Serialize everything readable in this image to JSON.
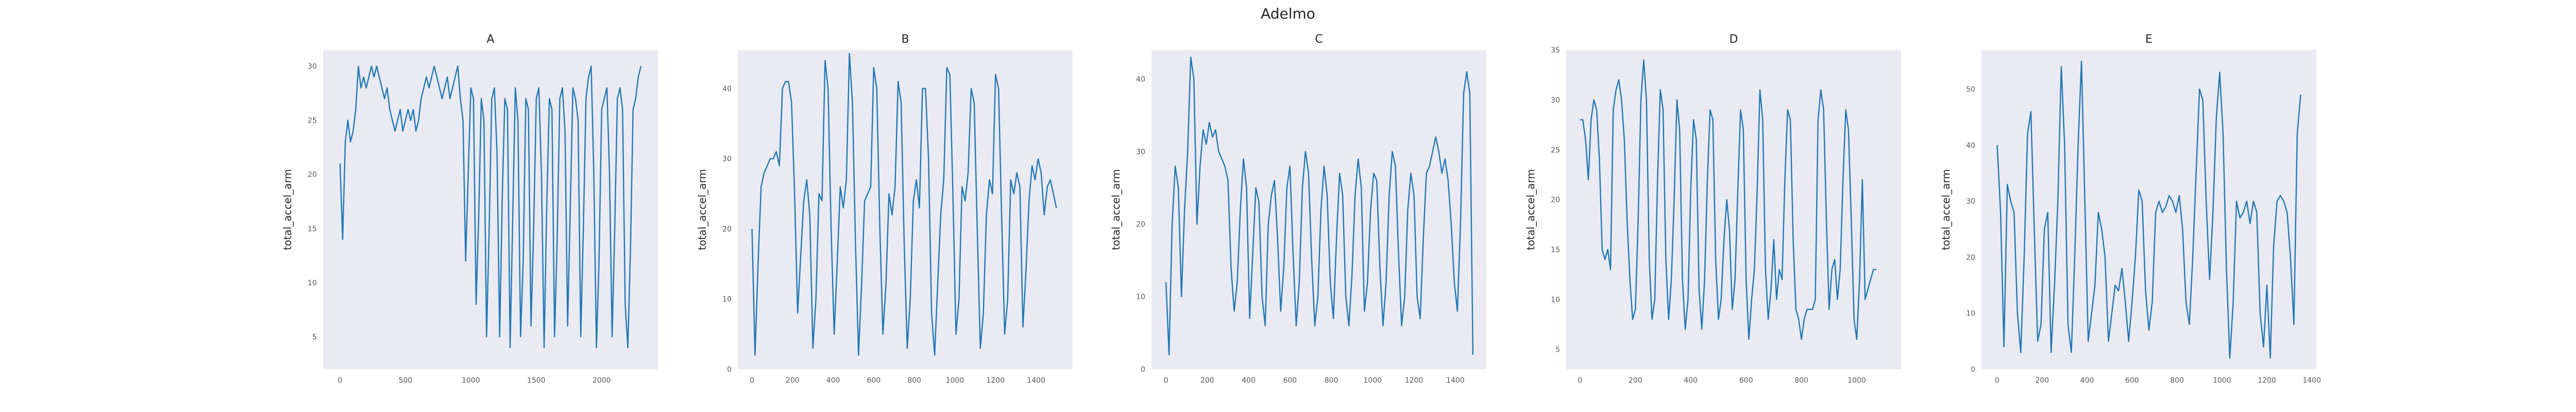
{
  "figure_title": "Adelmo",
  "colors": {
    "line": "#1f77b4",
    "plot_bg": "#eaeaf2"
  },
  "chart_data": [
    {
      "type": "line",
      "title": "A",
      "xlabel": "",
      "ylabel": "total_accel_arm",
      "xlim": [
        -130,
        2430
      ],
      "ylim": [
        2,
        31.5
      ],
      "xticks": [
        0,
        500,
        1000,
        1500,
        2000
      ],
      "yticks": [
        5,
        10,
        15,
        20,
        25,
        30
      ],
      "grid": false,
      "x": [
        0,
        20,
        40,
        60,
        80,
        100,
        120,
        140,
        160,
        180,
        200,
        220,
        240,
        260,
        280,
        300,
        320,
        340,
        360,
        380,
        400,
        420,
        440,
        460,
        480,
        500,
        520,
        540,
        560,
        580,
        600,
        620,
        640,
        660,
        680,
        700,
        720,
        740,
        760,
        780,
        800,
        820,
        840,
        860,
        880,
        900,
        920,
        940,
        960,
        980,
        1000,
        1020,
        1040,
        1060,
        1080,
        1100,
        1120,
        1140,
        1160,
        1180,
        1200,
        1220,
        1240,
        1260,
        1280,
        1300,
        1320,
        1340,
        1360,
        1380,
        1400,
        1420,
        1440,
        1460,
        1480,
        1500,
        1520,
        1540,
        1560,
        1580,
        1600,
        1620,
        1640,
        1660,
        1680,
        1700,
        1720,
        1740,
        1760,
        1780,
        1800,
        1820,
        1840,
        1860,
        1880,
        1900,
        1920,
        1940,
        1960,
        1980,
        2000,
        2020,
        2040,
        2060,
        2080,
        2100,
        2120,
        2140,
        2160,
        2180,
        2200,
        2220,
        2240,
        2260,
        2280,
        2300
      ],
      "values": [
        21,
        14,
        23,
        25,
        23,
        24,
        26,
        30,
        28,
        29,
        28,
        29,
        30,
        29,
        30,
        29,
        28,
        27,
        28,
        26,
        25,
        24,
        25,
        26,
        24,
        25,
        26,
        25,
        26,
        24,
        25,
        27,
        28,
        29,
        28,
        29,
        30,
        29,
        28,
        27,
        28,
        29,
        27,
        28,
        29,
        30,
        27,
        25,
        12,
        20,
        28,
        27,
        8,
        16,
        27,
        25,
        5,
        15,
        27,
        28,
        22,
        5,
        18,
        27,
        26,
        4,
        16,
        28,
        25,
        5,
        12,
        27,
        26,
        6,
        15,
        27,
        28,
        20,
        4,
        17,
        27,
        26,
        5,
        14,
        27,
        28,
        24,
        6,
        17,
        28,
        27,
        25,
        5,
        15,
        27,
        29,
        30,
        20,
        4,
        12,
        26,
        27,
        28,
        20,
        5,
        15,
        27,
        28,
        26,
        8,
        4,
        13,
        26,
        27,
        29,
        30
      ]
    },
    {
      "type": "line",
      "title": "B",
      "xlabel": "",
      "ylabel": "total_accel_arm",
      "xlim": [
        -70,
        1580
      ],
      "ylim": [
        0,
        45.5
      ],
      "xticks": [
        0,
        200,
        400,
        600,
        800,
        1000,
        1200,
        1400
      ],
      "yticks": [
        0,
        10,
        20,
        30,
        40
      ],
      "grid": false,
      "x": [
        0,
        15,
        30,
        45,
        60,
        75,
        90,
        105,
        120,
        135,
        150,
        165,
        180,
        195,
        210,
        225,
        240,
        255,
        270,
        285,
        300,
        315,
        330,
        345,
        360,
        375,
        390,
        405,
        420,
        435,
        450,
        465,
        480,
        495,
        510,
        525,
        540,
        555,
        570,
        585,
        600,
        615,
        630,
        645,
        660,
        675,
        690,
        705,
        720,
        735,
        750,
        765,
        780,
        795,
        810,
        825,
        840,
        855,
        870,
        885,
        900,
        915,
        930,
        945,
        960,
        975,
        990,
        1005,
        1020,
        1035,
        1050,
        1065,
        1080,
        1095,
        1110,
        1125,
        1140,
        1155,
        1170,
        1185,
        1200,
        1215,
        1230,
        1245,
        1260,
        1275,
        1290,
        1305,
        1320,
        1335,
        1350,
        1365,
        1380,
        1395,
        1410,
        1425,
        1440,
        1455,
        1470,
        1485,
        1500
      ],
      "values": [
        20,
        2,
        15,
        26,
        28,
        29,
        30,
        30,
        31,
        29,
        40,
        41,
        41,
        38,
        25,
        8,
        16,
        24,
        27,
        22,
        3,
        10,
        25,
        24,
        44,
        40,
        20,
        5,
        15,
        26,
        23,
        27,
        45,
        38,
        18,
        2,
        12,
        24,
        25,
        26,
        43,
        40,
        20,
        5,
        12,
        25,
        22,
        26,
        41,
        38,
        18,
        3,
        10,
        24,
        27,
        23,
        40,
        40,
        30,
        8,
        2,
        12,
        22,
        27,
        43,
        42,
        25,
        5,
        10,
        26,
        24,
        28,
        40,
        38,
        20,
        3,
        8,
        22,
        27,
        25,
        42,
        40,
        22,
        5,
        10,
        27,
        25,
        28,
        26,
        6,
        14,
        24,
        29,
        27,
        30,
        28,
        22,
        26,
        27,
        25,
        23
      ]
    },
    {
      "type": "line",
      "title": "C",
      "xlabel": "",
      "ylabel": "total_accel_arm",
      "xlim": [
        -70,
        1550
      ],
      "ylim": [
        0,
        44
      ],
      "xticks": [
        0,
        200,
        400,
        600,
        800,
        1000,
        1200,
        1400
      ],
      "yticks": [
        0,
        10,
        20,
        30,
        40
      ],
      "grid": false,
      "x": [
        0,
        15,
        30,
        45,
        60,
        75,
        90,
        105,
        120,
        135,
        150,
        165,
        180,
        195,
        210,
        225,
        240,
        255,
        270,
        285,
        300,
        315,
        330,
        345,
        360,
        375,
        390,
        405,
        420,
        435,
        450,
        465,
        480,
        495,
        510,
        525,
        540,
        555,
        570,
        585,
        600,
        615,
        630,
        645,
        660,
        675,
        690,
        705,
        720,
        735,
        750,
        765,
        780,
        795,
        810,
        825,
        840,
        855,
        870,
        885,
        900,
        915,
        930,
        945,
        960,
        975,
        990,
        1005,
        1020,
        1035,
        1050,
        1065,
        1080,
        1095,
        1110,
        1125,
        1140,
        1155,
        1170,
        1185,
        1200,
        1215,
        1230,
        1245,
        1260,
        1275,
        1290,
        1305,
        1320,
        1335,
        1350,
        1365,
        1380,
        1395,
        1410,
        1425,
        1440,
        1455,
        1470,
        1485
      ],
      "values": [
        12,
        2,
        20,
        28,
        25,
        10,
        22,
        30,
        43,
        40,
        20,
        28,
        33,
        31,
        34,
        32,
        33,
        30,
        29,
        28,
        26,
        14,
        8,
        12,
        22,
        29,
        25,
        7,
        16,
        25,
        23,
        10,
        6,
        20,
        24,
        26,
        18,
        8,
        14,
        25,
        28,
        16,
        6,
        12,
        25,
        30,
        27,
        15,
        6,
        10,
        22,
        28,
        24,
        12,
        7,
        18,
        27,
        24,
        10,
        6,
        13,
        24,
        29,
        25,
        8,
        12,
        22,
        27,
        26,
        14,
        6,
        12,
        24,
        30,
        28,
        16,
        6,
        10,
        22,
        27,
        24,
        10,
        7,
        18,
        27,
        28,
        30,
        32,
        30,
        27,
        29,
        26,
        20,
        12,
        8,
        20,
        38,
        41,
        38,
        2
      ]
    },
    {
      "type": "line",
      "title": "D",
      "xlabel": "",
      "ylabel": "total_accel_arm",
      "xlim": [
        -50,
        1160
      ],
      "ylim": [
        3,
        35
      ],
      "xticks": [
        0,
        200,
        400,
        600,
        800,
        1000
      ],
      "yticks": [
        5,
        10,
        15,
        20,
        25,
        30,
        35
      ],
      "grid": false,
      "x": [
        0,
        10,
        20,
        30,
        40,
        50,
        60,
        70,
        80,
        90,
        100,
        110,
        120,
        130,
        140,
        150,
        160,
        170,
        180,
        190,
        200,
        210,
        220,
        230,
        240,
        250,
        260,
        270,
        280,
        290,
        300,
        310,
        320,
        330,
        340,
        350,
        360,
        370,
        380,
        390,
        400,
        410,
        420,
        430,
        440,
        450,
        460,
        470,
        480,
        490,
        500,
        510,
        520,
        530,
        540,
        550,
        560,
        570,
        580,
        590,
        600,
        610,
        620,
        630,
        640,
        650,
        660,
        670,
        680,
        690,
        700,
        710,
        720,
        730,
        740,
        750,
        760,
        770,
        780,
        790,
        800,
        810,
        820,
        830,
        840,
        850,
        860,
        870,
        880,
        890,
        900,
        910,
        920,
        930,
        940,
        950,
        960,
        970,
        980,
        990,
        1000,
        1010,
        1020,
        1030,
        1040,
        1050,
        1060,
        1070
      ],
      "values": [
        28,
        28,
        26,
        22,
        28,
        30,
        29,
        24,
        15,
        14,
        15,
        13,
        29,
        31,
        32,
        30,
        26,
        18,
        12,
        8,
        9,
        18,
        30,
        34,
        30,
        14,
        8,
        10,
        22,
        31,
        29,
        14,
        8,
        12,
        20,
        30,
        27,
        12,
        7,
        10,
        21,
        28,
        26,
        11,
        7,
        12,
        22,
        29,
        28,
        14,
        8,
        10,
        16,
        20,
        17,
        9,
        12,
        21,
        29,
        27,
        12,
        6,
        10,
        13,
        21,
        31,
        28,
        13,
        8,
        11,
        16,
        10,
        13,
        12,
        22,
        29,
        28,
        16,
        9,
        8,
        6,
        8,
        9,
        9,
        9,
        10,
        28,
        31,
        29,
        18,
        9,
        13,
        14,
        10,
        13,
        22,
        29,
        27,
        18,
        8,
        6,
        12,
        22,
        10,
        11,
        12,
        13,
        13
      ]
    },
    {
      "type": "line",
      "title": "E",
      "xlabel": "",
      "ylabel": "total_accel_arm",
      "xlim": [
        -70,
        1420
      ],
      "ylim": [
        0,
        57
      ],
      "xticks": [
        0,
        200,
        400,
        600,
        800,
        1000,
        1200,
        1400
      ],
      "yticks": [
        0,
        10,
        20,
        30,
        40,
        50
      ],
      "grid": false,
      "x": [
        0,
        15,
        30,
        45,
        60,
        75,
        90,
        105,
        120,
        135,
        150,
        165,
        180,
        195,
        210,
        225,
        240,
        255,
        270,
        285,
        300,
        315,
        330,
        345,
        360,
        375,
        390,
        405,
        420,
        435,
        450,
        465,
        480,
        495,
        510,
        525,
        540,
        555,
        570,
        585,
        600,
        615,
        630,
        645,
        660,
        675,
        690,
        705,
        720,
        735,
        750,
        765,
        780,
        795,
        810,
        825,
        840,
        855,
        870,
        885,
        900,
        915,
        930,
        945,
        960,
        975,
        990,
        1005,
        1020,
        1035,
        1050,
        1065,
        1080,
        1095,
        1110,
        1125,
        1140,
        1155,
        1170,
        1185,
        1200,
        1215,
        1230,
        1245,
        1260,
        1275,
        1290,
        1305,
        1320,
        1335,
        1350
      ],
      "values": [
        40,
        28,
        4,
        33,
        30,
        28,
        10,
        3,
        20,
        42,
        46,
        25,
        5,
        8,
        25,
        28,
        3,
        15,
        30,
        54,
        40,
        8,
        3,
        20,
        40,
        55,
        30,
        5,
        10,
        15,
        28,
        25,
        20,
        5,
        10,
        15,
        14,
        18,
        12,
        5,
        12,
        20,
        32,
        30,
        14,
        7,
        12,
        28,
        30,
        28,
        29,
        31,
        30,
        28,
        31,
        25,
        12,
        8,
        20,
        35,
        50,
        48,
        30,
        16,
        28,
        45,
        53,
        42,
        18,
        2,
        12,
        30,
        27,
        28,
        30,
        26,
        30,
        28,
        10,
        4,
        15,
        2,
        22,
        30,
        31,
        30,
        28,
        20,
        8,
        42,
        49
      ]
    }
  ]
}
